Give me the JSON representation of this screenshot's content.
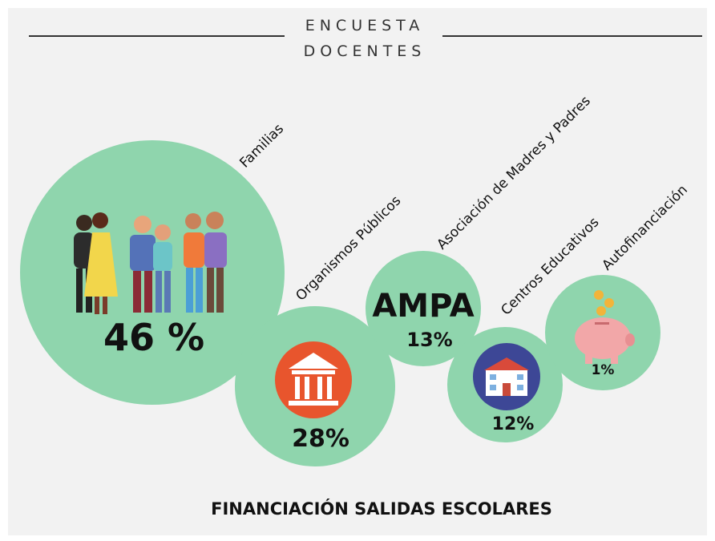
{
  "chart_data": {
    "type": "bubble",
    "title": "ENCUESTA",
    "subtitle": "DOCENTES",
    "categories": [
      "Familias",
      "Organismos Públicos",
      "Asociación de Madres y Padres",
      "Centros Educativos",
      "Autofinanciación"
    ],
    "values": [
      46,
      28,
      13,
      12,
      1
    ],
    "value_labels": [
      "46 %",
      "28%",
      "13%",
      "12%",
      "1%"
    ],
    "annotation": "AMPA",
    "caption": "FINANCIACIÓN SALIDAS ESCOLARES",
    "color": "#8fd5ad"
  }
}
